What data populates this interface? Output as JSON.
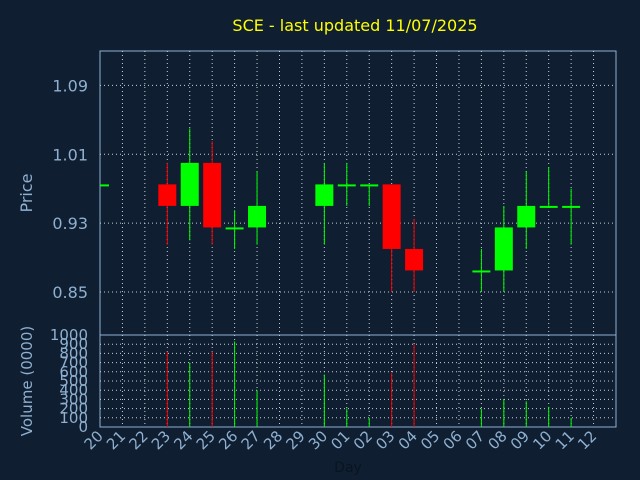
{
  "chart_data": {
    "type": "candlestick",
    "title": "SCE - last updated 11/07/2025",
    "xlabel": "Day",
    "ylabel_price": "Price",
    "ylabel_volume": "Volume (0000)",
    "price_ylim": [
      0.8,
      1.13
    ],
    "price_ticks": [
      "0.85",
      "0.93",
      "1.01",
      "1.09"
    ],
    "volume_ylim": [
      0,
      1000
    ],
    "volume_ticks": [
      "0",
      "100",
      "200",
      "300",
      "400",
      "500",
      "600",
      "700",
      "800",
      "900",
      "1000"
    ],
    "x_labels": [
      "20",
      "21",
      "22",
      "23",
      "24",
      "25",
      "26",
      "27",
      "28",
      "29",
      "30",
      "01",
      "02",
      "03",
      "04",
      "05",
      "06",
      "07",
      "08",
      "09",
      "10",
      "11",
      "12"
    ],
    "grid": true,
    "colors": {
      "up": "#00ff00",
      "down": "#ff0000",
      "title": "#ffff00",
      "text": "#8fb0d0",
      "grid": "#c8d2dc"
    },
    "candles": [
      {
        "x": "20",
        "open": 0.975,
        "high": 0.975,
        "low": 0.975,
        "close": 0.975,
        "volume": 0
      },
      {
        "x": "23",
        "open": 0.975,
        "high": 1.0,
        "low": 0.905,
        "close": 0.95,
        "volume": 820
      },
      {
        "x": "24",
        "open": 0.95,
        "high": 1.04,
        "low": 0.91,
        "close": 1.0,
        "volume": 700
      },
      {
        "x": "25",
        "open": 1.0,
        "high": 1.025,
        "low": 0.905,
        "close": 0.925,
        "volume": 820
      },
      {
        "x": "26",
        "open": 0.925,
        "high": 0.945,
        "low": 0.9,
        "close": 0.925,
        "volume": 930
      },
      {
        "x": "27",
        "open": 0.925,
        "high": 0.99,
        "low": 0.905,
        "close": 0.95,
        "volume": 400
      },
      {
        "x": "30",
        "open": 0.95,
        "high": 1.0,
        "low": 0.905,
        "close": 0.975,
        "volume": 570
      },
      {
        "x": "01",
        "open": 0.975,
        "high": 1.0,
        "low": 0.95,
        "close": 0.975,
        "volume": 200
      },
      {
        "x": "02",
        "open": 0.975,
        "high": 0.975,
        "low": 0.95,
        "close": 0.975,
        "volume": 100
      },
      {
        "x": "03",
        "open": 0.975,
        "high": 0.975,
        "low": 0.85,
        "close": 0.9,
        "volume": 590
      },
      {
        "x": "04",
        "open": 0.9,
        "high": 0.935,
        "low": 0.85,
        "close": 0.875,
        "volume": 900
      },
      {
        "x": "07",
        "open": 0.875,
        "high": 0.9,
        "low": 0.85,
        "close": 0.875,
        "volume": 200
      },
      {
        "x": "08",
        "open": 0.875,
        "high": 0.95,
        "low": 0.85,
        "close": 0.925,
        "volume": 300
      },
      {
        "x": "09",
        "open": 0.925,
        "high": 0.99,
        "low": 0.9,
        "close": 0.95,
        "volume": 280
      },
      {
        "x": "10",
        "open": 0.95,
        "high": 0.995,
        "low": 0.95,
        "close": 0.95,
        "volume": 220
      },
      {
        "x": "11",
        "open": 0.95,
        "high": 0.97,
        "low": 0.905,
        "close": 0.95,
        "volume": 100
      }
    ]
  }
}
